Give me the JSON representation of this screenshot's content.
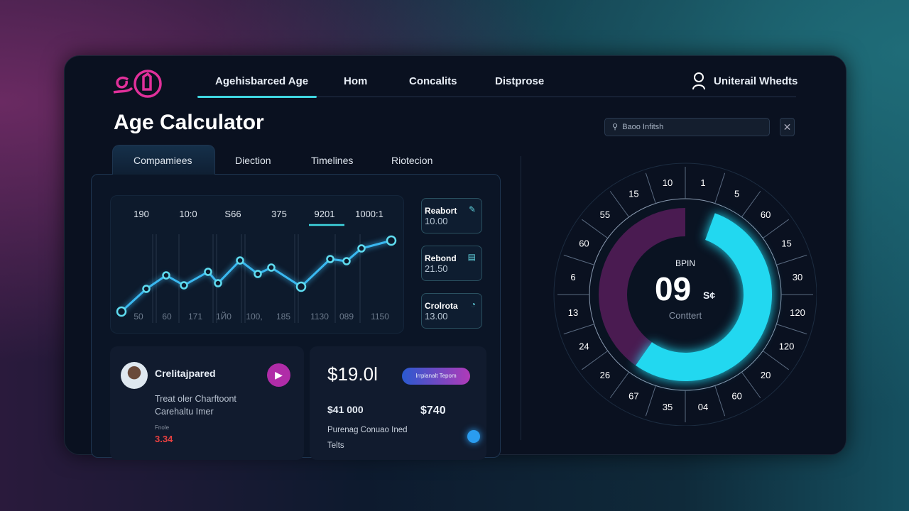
{
  "header": {
    "nav": [
      "Agehisbarced Age",
      "Hom",
      "Concalits",
      "Distprose"
    ],
    "user": "Uniterail Whedts"
  },
  "page_title": "Age Calculator",
  "tabs": [
    "Compamiees",
    "Diection",
    "Timelines",
    "Riotecion"
  ],
  "search": {
    "placeholder": "Baoo Infitsh"
  },
  "chart": {
    "top_labels": [
      "190",
      "10:0",
      "S66",
      "375",
      "9201",
      "1000:1"
    ],
    "bottom_labels": [
      "50",
      "60",
      "171",
      "1Й0",
      "100,",
      "185",
      "1130",
      "089",
      "1150"
    ],
    "values": [
      31,
      63,
      82,
      68,
      87,
      71,
      103,
      84,
      93,
      66,
      105,
      102,
      120,
      131
    ],
    "color": "#3ab8f0"
  },
  "side_cards": [
    {
      "label": "Reabort",
      "value": "10.00",
      "icon": "satellite-icon"
    },
    {
      "label": "Rebond",
      "value": "21.50",
      "icon": "calendar-icon"
    },
    {
      "label": "Crolrota",
      "value": "13.00",
      "icon": "signal-icon"
    }
  ],
  "profile_card": {
    "name": "Crelitajpared",
    "line1": "Treat oler Charftoont",
    "line2": "Carehaltu Imer",
    "small": "Fnole",
    "value": "3.34"
  },
  "price_card": {
    "price": "$19.0l",
    "button": "Irrplanalt Tepom",
    "amount1": "$41 000",
    "amount2": "$740",
    "line1": "Purenag Conuao Ined",
    "line2": "Telts"
  },
  "gauge": {
    "label": "BPIN",
    "value": "09",
    "unit": "S¢",
    "sub": "Conttert",
    "ring_labels": [
      "10",
      "1",
      "5",
      "60",
      "15",
      "30",
      "120",
      "120",
      "20",
      "60",
      "04",
      "35",
      "67",
      "26",
      "24",
      "13",
      "6",
      "60",
      "55",
      "15"
    ],
    "accent": "#22d8f0",
    "secondary": "#5a1e5e"
  }
}
